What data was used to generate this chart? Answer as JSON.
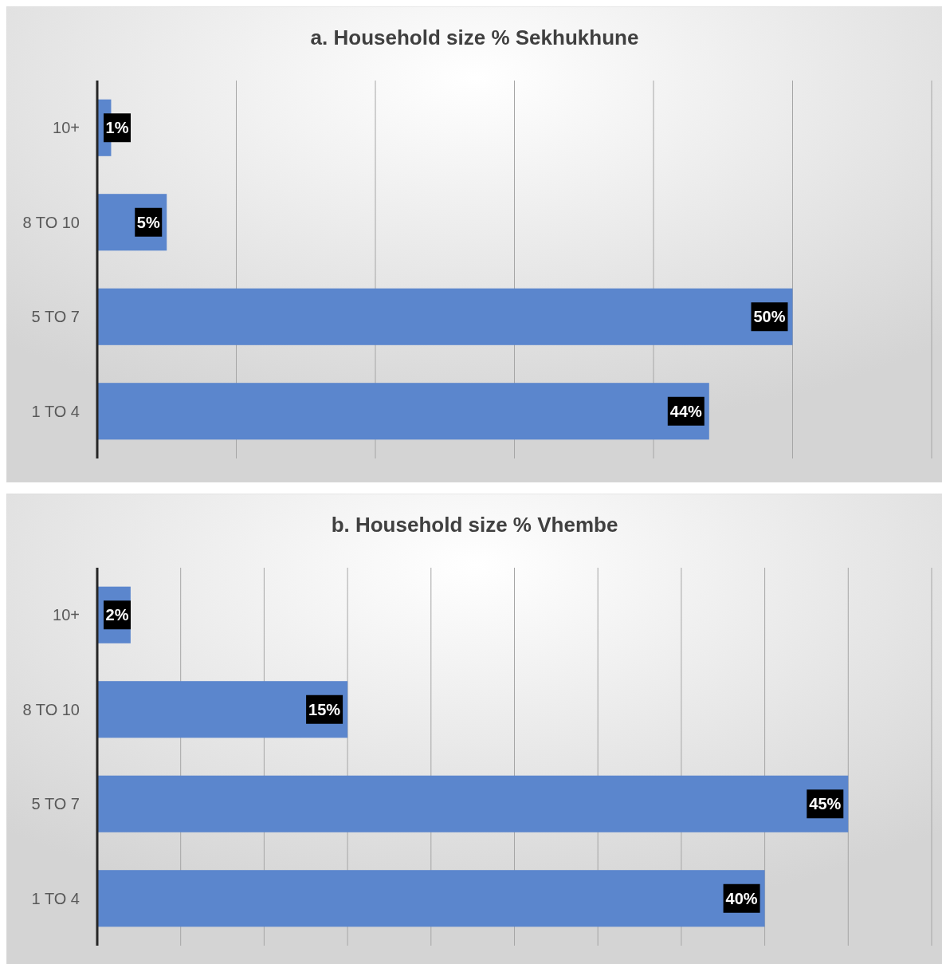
{
  "chart_data": [
    {
      "type": "bar",
      "orientation": "horizontal",
      "title": "a. Household size % Sekhukhune",
      "categories": [
        "10+",
        "8 TO 10",
        "5 TO 7",
        "1 TO 4"
      ],
      "values": [
        1,
        5,
        50,
        44
      ],
      "value_labels": [
        "1%",
        "5%",
        "50%",
        "44%"
      ],
      "color": "#5b86cd",
      "xlim": [
        0,
        60
      ],
      "xticks": [
        {
          "value": 0,
          "label": null
        },
        {
          "value": 10,
          "label": null
        },
        {
          "value": 20,
          "label": null
        },
        {
          "value": 30,
          "label": null
        },
        {
          "value": 40,
          "label": null
        },
        {
          "value": 50,
          "label": null
        },
        {
          "value": 60,
          "label": null
        }
      ],
      "grid": "x",
      "tick_labels": "y"
    },
    {
      "type": "bar",
      "orientation": "horizontal",
      "title": "b. Household size % Vhembe",
      "categories": [
        "10+",
        "8 TO 10",
        "5 TO 7",
        "1 TO 4"
      ],
      "values": [
        2,
        15,
        45,
        40
      ],
      "value_labels": [
        "2%",
        "15%",
        "45%",
        "40%"
      ],
      "color": "#5b86cd",
      "xlim": [
        0,
        50
      ],
      "xticks": [
        {
          "value": 0,
          "label": null
        },
        {
          "value": 5,
          "label": null
        },
        {
          "value": 10,
          "label": null
        },
        {
          "value": 15,
          "label": null
        },
        {
          "value": 20,
          "label": null
        },
        {
          "value": 25,
          "label": null
        },
        {
          "value": 30,
          "label": null
        },
        {
          "value": 35,
          "label": null
        },
        {
          "value": 40,
          "label": null
        },
        {
          "value": 45,
          "label": null
        },
        {
          "value": 50,
          "label": null
        }
      ],
      "grid": "x",
      "tick_labels": "y"
    }
  ]
}
